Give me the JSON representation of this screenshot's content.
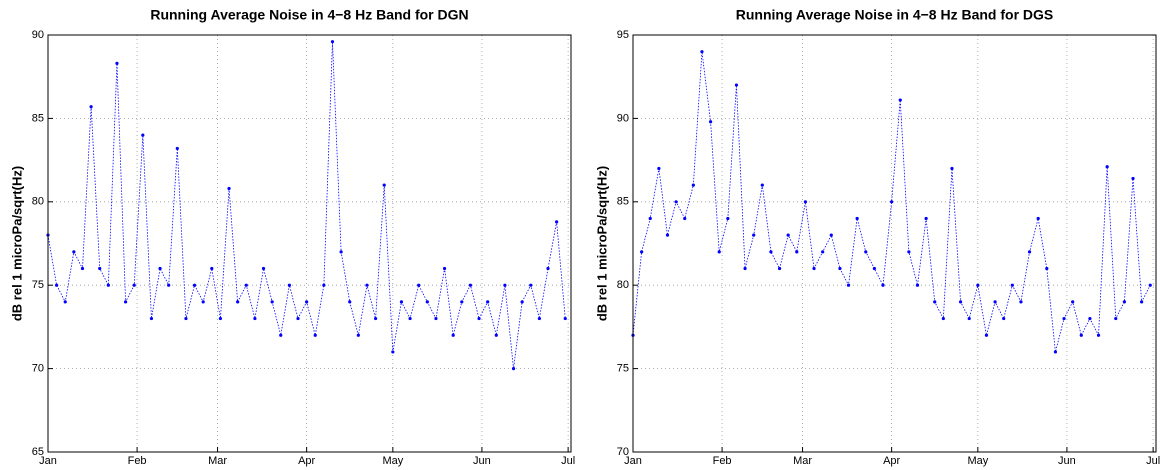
{
  "chart_data": [
    {
      "type": "scatter",
      "title": "Running Average Noise in 4−8 Hz Band for DGN",
      "y_label": "dB rel 1 microPa/sqrt(Hz)",
      "color": "#0000ff",
      "grid": true,
      "xlim": [
        0,
        182
      ],
      "xticks": [
        {
          "value": 0,
          "label": "Jan"
        },
        {
          "value": 31,
          "label": "Feb"
        },
        {
          "value": 59,
          "label": "Mar"
        },
        {
          "value": 90,
          "label": "Apr"
        },
        {
          "value": 120,
          "label": "May"
        },
        {
          "value": 151,
          "label": "Jun"
        },
        {
          "value": 181,
          "label": "Jul"
        }
      ],
      "ylim": [
        65,
        90
      ],
      "yticks": [
        65,
        70,
        75,
        80,
        85,
        90
      ],
      "x": [
        0,
        3,
        6,
        9,
        12,
        15,
        18,
        21,
        24,
        27,
        30,
        33,
        36,
        39,
        42,
        45,
        48,
        51,
        54,
        57,
        60,
        63,
        66,
        69,
        72,
        75,
        78,
        81,
        84,
        87,
        90,
        93,
        96,
        99,
        102,
        105,
        108,
        111,
        114,
        117,
        120,
        123,
        126,
        129,
        132,
        135,
        138,
        141,
        144,
        147,
        150,
        153,
        156,
        159,
        162,
        165,
        168,
        171,
        174,
        177,
        180
      ],
      "values": [
        78,
        75,
        74,
        77,
        76,
        85.7,
        76,
        75,
        88.3,
        74,
        75,
        84,
        73,
        76,
        75,
        83.2,
        73,
        75,
        74,
        76,
        73,
        80.8,
        74,
        75,
        73,
        76,
        74,
        72,
        75,
        73,
        74,
        72,
        75,
        89.6,
        77,
        74,
        72,
        75,
        73,
        81,
        71,
        74,
        73,
        75,
        74,
        73,
        76,
        72,
        74,
        75,
        73,
        74,
        72,
        75,
        70,
        74,
        75,
        73,
        76,
        78.8,
        73
      ]
    },
    {
      "type": "scatter",
      "title": "Running Average Noise in 4−8 Hz Band for DGS",
      "y_label": "dB rel 1 microPa/sqrt(Hz)",
      "color": "#0000ff",
      "grid": true,
      "xlim": [
        0,
        182
      ],
      "xticks": [
        {
          "value": 0,
          "label": "Jan"
        },
        {
          "value": 31,
          "label": "Feb"
        },
        {
          "value": 59,
          "label": "Mar"
        },
        {
          "value": 90,
          "label": "Apr"
        },
        {
          "value": 120,
          "label": "May"
        },
        {
          "value": 151,
          "label": "Jun"
        },
        {
          "value": 181,
          "label": "Jul"
        }
      ],
      "ylim": [
        70,
        95
      ],
      "yticks": [
        70,
        75,
        80,
        85,
        90,
        95
      ],
      "x": [
        0,
        3,
        6,
        9,
        12,
        15,
        18,
        21,
        24,
        27,
        30,
        33,
        36,
        39,
        42,
        45,
        48,
        51,
        54,
        57,
        60,
        63,
        66,
        69,
        72,
        75,
        78,
        81,
        84,
        87,
        90,
        93,
        96,
        99,
        102,
        105,
        108,
        111,
        114,
        117,
        120,
        123,
        126,
        129,
        132,
        135,
        138,
        141,
        144,
        147,
        150,
        153,
        156,
        159,
        162,
        165,
        168,
        171,
        174,
        177,
        180
      ],
      "values": [
        77,
        82,
        84,
        87,
        83,
        85,
        84,
        86,
        94,
        89.8,
        82,
        84,
        92,
        81,
        83,
        86,
        82,
        81,
        83,
        82,
        85,
        81,
        82,
        83,
        81,
        80,
        84,
        82,
        81,
        80,
        85,
        91.1,
        82,
        80,
        84,
        79,
        78,
        87,
        79,
        78,
        80,
        77,
        79,
        78,
        80,
        79,
        82,
        84,
        81,
        76,
        78,
        79,
        77,
        78,
        77,
        87.1,
        78,
        79,
        86.4,
        79,
        80
      ]
    }
  ]
}
